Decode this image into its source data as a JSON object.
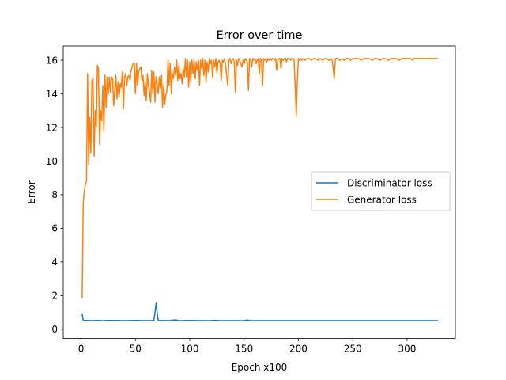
{
  "chart_data": {
    "type": "line",
    "title": "Error over time",
    "xlabel": "Epoch x100",
    "ylabel": "Error",
    "xlim": [
      -16.4,
      344.4
    ],
    "ylim": [
      -0.55,
      16.85
    ],
    "xticks": [
      0,
      50,
      100,
      150,
      200,
      250,
      300
    ],
    "yticks": [
      0,
      2,
      4,
      6,
      8,
      10,
      12,
      14,
      16
    ],
    "grid": false,
    "legend_position": "center-right",
    "series": [
      {
        "name": "Discriminator loss",
        "color": "#1f77b4",
        "points": [
          [
            1,
            0.9
          ],
          [
            2,
            0.52
          ],
          [
            5,
            0.52
          ],
          [
            10,
            0.51
          ],
          [
            15,
            0.52
          ],
          [
            20,
            0.51
          ],
          [
            25,
            0.52
          ],
          [
            30,
            0.52
          ],
          [
            40,
            0.51
          ],
          [
            50,
            0.52
          ],
          [
            60,
            0.51
          ],
          [
            67,
            0.52
          ],
          [
            68,
            1.0
          ],
          [
            69,
            1.55
          ],
          [
            70,
            1.0
          ],
          [
            71,
            0.52
          ],
          [
            80,
            0.51
          ],
          [
            87,
            0.55
          ],
          [
            90,
            0.51
          ],
          [
            100,
            0.52
          ],
          [
            110,
            0.51
          ],
          [
            120,
            0.51
          ],
          [
            122,
            0.53
          ],
          [
            130,
            0.51
          ],
          [
            140,
            0.51
          ],
          [
            150,
            0.51
          ],
          [
            153,
            0.55
          ],
          [
            156,
            0.51
          ],
          [
            170,
            0.51
          ],
          [
            200,
            0.51
          ],
          [
            230,
            0.51
          ],
          [
            260,
            0.51
          ],
          [
            290,
            0.51
          ],
          [
            310,
            0.51
          ],
          [
            328,
            0.51
          ]
        ]
      },
      {
        "name": "Generator loss",
        "color": "#ff7f0e",
        "points": [
          [
            1,
            1.9
          ],
          [
            2,
            7.5
          ],
          [
            3,
            8.2
          ],
          [
            4,
            8.6
          ],
          [
            5,
            8.8
          ],
          [
            6,
            15.2
          ],
          [
            7,
            9.8
          ],
          [
            8,
            12.6
          ],
          [
            9,
            10.5
          ],
          [
            10,
            14.8
          ],
          [
            11,
            14.9
          ],
          [
            12,
            10.3
          ],
          [
            13,
            13.0
          ],
          [
            14,
            12.0
          ],
          [
            15,
            15.7
          ],
          [
            16,
            15.5
          ],
          [
            17,
            11.0
          ],
          [
            18,
            13.0
          ],
          [
            19,
            12.4
          ],
          [
            20,
            14.5
          ],
          [
            21,
            11.8
          ],
          [
            22,
            15.1
          ],
          [
            23,
            13.2
          ],
          [
            24,
            15.0
          ],
          [
            25,
            14.0
          ],
          [
            26,
            15.0
          ],
          [
            27,
            14.1
          ],
          [
            28,
            15.0
          ],
          [
            29,
            14.9
          ],
          [
            30,
            13.3
          ],
          [
            31,
            14.2
          ],
          [
            32,
            15.1
          ],
          [
            33,
            13.7
          ],
          [
            34,
            14.7
          ],
          [
            35,
            13.8
          ],
          [
            36,
            14.6
          ],
          [
            37,
            14.4
          ],
          [
            38,
            15.3
          ],
          [
            39,
            13.1
          ],
          [
            40,
            15.0
          ],
          [
            41,
            15.2
          ],
          [
            42,
            14.5
          ],
          [
            43,
            15.0
          ],
          [
            44,
            15.1
          ],
          [
            45,
            14.8
          ],
          [
            46,
            15.4
          ],
          [
            47,
            15.6
          ],
          [
            48,
            15.8
          ],
          [
            49,
            15.8
          ],
          [
            50,
            14.0
          ],
          [
            51,
            15.8
          ],
          [
            52,
            14.5
          ],
          [
            53,
            15.3
          ],
          [
            54,
            15.5
          ],
          [
            55,
            15.6
          ],
          [
            56,
            14.8
          ],
          [
            57,
            15.1
          ],
          [
            58,
            13.9
          ],
          [
            59,
            14.7
          ],
          [
            60,
            13.6
          ],
          [
            61,
            15.2
          ],
          [
            62,
            14.5
          ],
          [
            63,
            14.1
          ],
          [
            64,
            13.5
          ],
          [
            65,
            15.4
          ],
          [
            66,
            14.0
          ],
          [
            67,
            15.3
          ],
          [
            68,
            13.5
          ],
          [
            69,
            15.0
          ],
          [
            70,
            14.6
          ],
          [
            71,
            14.0
          ],
          [
            72,
            15.0
          ],
          [
            73,
            14.3
          ],
          [
            74,
            15.1
          ],
          [
            75,
            13.2
          ],
          [
            76,
            14.5
          ],
          [
            77,
            13.4
          ],
          [
            78,
            13.9
          ],
          [
            79,
            14.2
          ],
          [
            80,
            16.0
          ],
          [
            81,
            14.5
          ],
          [
            82,
            15.8
          ],
          [
            83,
            14.0
          ],
          [
            84,
            15.2
          ],
          [
            85,
            14.9
          ],
          [
            86,
            15.6
          ],
          [
            87,
            15.1
          ],
          [
            88,
            16.0
          ],
          [
            89,
            14.8
          ],
          [
            90,
            15.7
          ],
          [
            91,
            14.9
          ],
          [
            92,
            15.2
          ],
          [
            93,
            14.6
          ],
          [
            94,
            15.5
          ],
          [
            95,
            15.0
          ],
          [
            96,
            16.1
          ],
          [
            97,
            15.0
          ],
          [
            98,
            16.0
          ],
          [
            99,
            14.4
          ],
          [
            100,
            15.9
          ],
          [
            101,
            14.7
          ],
          [
            102,
            16.0
          ],
          [
            103,
            15.2
          ],
          [
            104,
            16.0
          ],
          [
            105,
            14.9
          ],
          [
            106,
            15.9
          ],
          [
            107,
            15.4
          ],
          [
            108,
            16.0
          ],
          [
            109,
            14.5
          ],
          [
            110,
            16.0
          ],
          [
            111,
            15.5
          ],
          [
            112,
            16.1
          ],
          [
            113,
            15.1
          ],
          [
            114,
            16.0
          ],
          [
            115,
            14.7
          ],
          [
            116,
            15.9
          ],
          [
            117,
            15.3
          ],
          [
            118,
            16.1
          ],
          [
            119,
            15.8
          ],
          [
            120,
            16.0
          ],
          [
            121,
            15.0
          ],
          [
            122,
            16.0
          ],
          [
            123,
            15.6
          ],
          [
            124,
            16.1
          ],
          [
            125,
            15.2
          ],
          [
            126,
            15.9
          ],
          [
            127,
            16.0
          ],
          [
            128,
            15.8
          ],
          [
            129,
            14.8
          ],
          [
            130,
            16.0
          ],
          [
            131,
            15.9
          ],
          [
            132,
            16.1
          ],
          [
            133,
            15.7
          ],
          [
            134,
            15.1
          ],
          [
            135,
            14.5
          ],
          [
            136,
            16.0
          ],
          [
            137,
            16.1
          ],
          [
            138,
            15.8
          ],
          [
            139,
            16.0
          ],
          [
            140,
            16.1
          ],
          [
            141,
            15.9
          ],
          [
            142,
            14.1
          ],
          [
            143,
            16.0
          ],
          [
            144,
            15.7
          ],
          [
            145,
            16.1
          ],
          [
            146,
            16.0
          ],
          [
            147,
            15.8
          ],
          [
            148,
            15.6
          ],
          [
            149,
            16.0
          ],
          [
            150,
            15.8
          ],
          [
            151,
            16.1
          ],
          [
            152,
            16.0
          ],
          [
            153,
            15.9
          ],
          [
            154,
            14.2
          ],
          [
            155,
            16.1
          ],
          [
            156,
            16.0
          ],
          [
            157,
            15.6
          ],
          [
            158,
            16.1
          ],
          [
            159,
            16.0
          ],
          [
            160,
            16.1
          ],
          [
            161,
            15.8
          ],
          [
            162,
            16.0
          ],
          [
            163,
            16.1
          ],
          [
            164,
            15.2
          ],
          [
            165,
            16.1
          ],
          [
            166,
            16.0
          ],
          [
            167,
            14.5
          ],
          [
            168,
            16.1
          ],
          [
            169,
            16.0
          ],
          [
            170,
            16.1
          ],
          [
            171,
            15.9
          ],
          [
            172,
            16.1
          ],
          [
            173,
            16.0
          ],
          [
            174,
            16.1
          ],
          [
            175,
            16.0
          ],
          [
            176,
            16.1
          ],
          [
            177,
            16.1
          ],
          [
            178,
            16.0
          ],
          [
            179,
            16.1
          ],
          [
            180,
            15.4
          ],
          [
            181,
            16.0
          ],
          [
            182,
            16.1
          ],
          [
            183,
            16.1
          ],
          [
            184,
            15.5
          ],
          [
            185,
            16.1
          ],
          [
            186,
            16.0
          ],
          [
            187,
            16.1
          ],
          [
            188,
            16.1
          ],
          [
            189,
            15.9
          ],
          [
            190,
            16.1
          ],
          [
            191,
            16.1
          ],
          [
            192,
            16.1
          ],
          [
            193,
            16.0
          ],
          [
            194,
            16.1
          ],
          [
            195,
            16.1
          ],
          [
            196,
            16.0
          ],
          [
            197,
            14.5
          ],
          [
            198,
            12.7
          ],
          [
            199,
            14.8
          ],
          [
            200,
            16.1
          ],
          [
            201,
            16.0
          ],
          [
            202,
            16.1
          ],
          [
            203,
            16.0
          ],
          [
            205,
            16.1
          ],
          [
            206,
            16.0
          ],
          [
            208,
            16.1
          ],
          [
            210,
            16.1
          ],
          [
            212,
            16.0
          ],
          [
            214,
            16.1
          ],
          [
            216,
            16.1
          ],
          [
            218,
            16.0
          ],
          [
            220,
            16.1
          ],
          [
            222,
            16.0
          ],
          [
            224,
            16.1
          ],
          [
            226,
            16.1
          ],
          [
            228,
            16.0
          ],
          [
            230,
            16.1
          ],
          [
            231,
            16.0
          ],
          [
            232,
            15.5
          ],
          [
            233,
            14.9
          ],
          [
            234,
            16.1
          ],
          [
            236,
            16.1
          ],
          [
            238,
            16.0
          ],
          [
            240,
            16.1
          ],
          [
            242,
            16.0
          ],
          [
            244,
            16.1
          ],
          [
            246,
            16.1
          ],
          [
            248,
            16.0
          ],
          [
            250,
            16.1
          ],
          [
            252,
            16.1
          ],
          [
            255,
            16.1
          ],
          [
            258,
            16.0
          ],
          [
            260,
            16.1
          ],
          [
            263,
            16.1
          ],
          [
            265,
            16.1
          ],
          [
            268,
            16.0
          ],
          [
            270,
            16.1
          ],
          [
            272,
            16.1
          ],
          [
            275,
            16.0
          ],
          [
            278,
            16.1
          ],
          [
            280,
            16.1
          ],
          [
            283,
            16.0
          ],
          [
            285,
            16.1
          ],
          [
            288,
            16.1
          ],
          [
            290,
            16.1
          ],
          [
            293,
            16.0
          ],
          [
            295,
            16.1
          ],
          [
            298,
            16.1
          ],
          [
            300,
            16.1
          ],
          [
            303,
            16.1
          ],
          [
            305,
            16.0
          ],
          [
            306,
            16.1
          ],
          [
            310,
            16.1
          ],
          [
            315,
            16.1
          ],
          [
            320,
            16.1
          ],
          [
            325,
            16.1
          ],
          [
            328,
            16.1
          ]
        ]
      }
    ]
  }
}
